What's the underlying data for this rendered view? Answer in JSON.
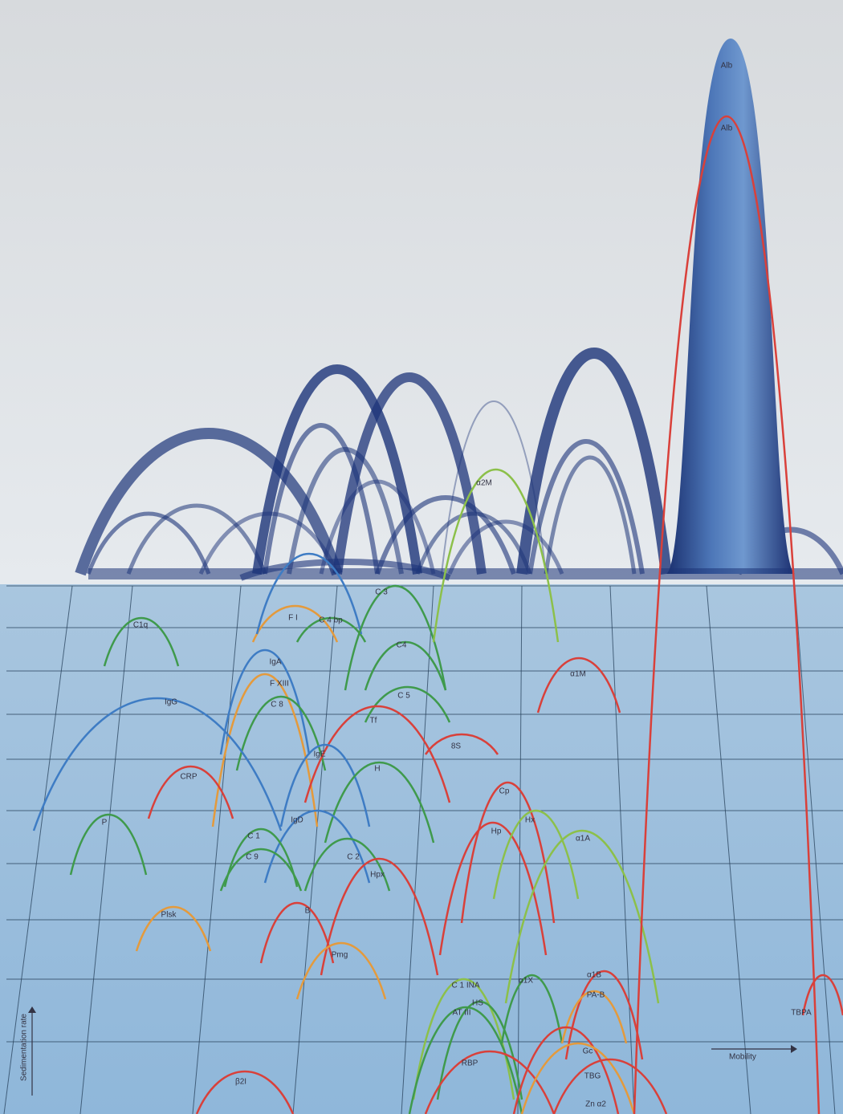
{
  "labels": [
    "Alb",
    "Alb",
    "α2M",
    "C 3",
    "F I",
    "C 4 bp",
    "C1q",
    "C4",
    "IgA",
    "α1M",
    "F XIII",
    "C 8",
    "C 5",
    "IgG",
    "Tf",
    "8S",
    "IgE",
    "H",
    "CRP",
    "Cp",
    "IgD",
    "P",
    "Hp",
    "Hx",
    "α1A",
    "C 1",
    "C 9",
    "C 2",
    "Hpx",
    "Plsk",
    "B",
    "Pmg",
    "C 1 INA",
    "α1X",
    "α1B",
    "PA-B",
    "HS",
    "AT III",
    "TBPA",
    "Gc",
    "RBP",
    "TBG",
    "β2I",
    "Zn α2"
  ],
  "axis": {
    "x": "Mobility",
    "y": "Sedimentation rate"
  }
}
